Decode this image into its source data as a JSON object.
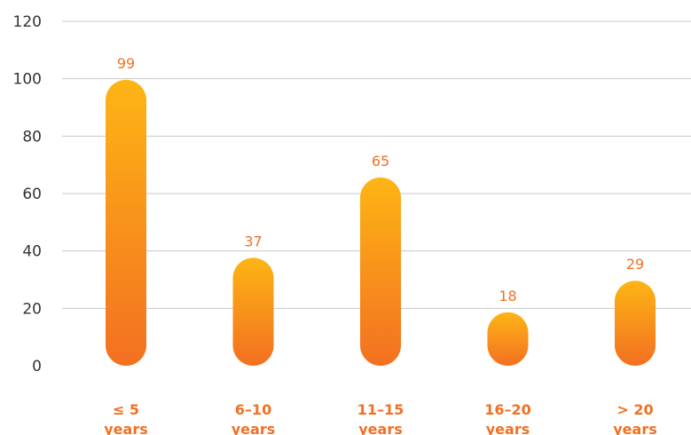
{
  "chart_data": {
    "type": "bar",
    "title": "",
    "xlabel": "",
    "ylabel": "",
    "categories": [
      [
        "≤ 5",
        "years"
      ],
      [
        "6–10",
        "years"
      ],
      [
        "11–15",
        "years"
      ],
      [
        "16–20",
        "years"
      ],
      [
        "> 20",
        "years"
      ]
    ],
    "values": [
      99,
      37,
      65,
      18,
      29
    ],
    "ylim": [
      0,
      120
    ],
    "yticks": [
      0,
      20,
      40,
      60,
      80,
      100,
      120
    ],
    "grid": true,
    "legend": "none",
    "colors": {
      "bar_top": "#fdb515",
      "bar_bottom": "#f37021",
      "label": "#f37021",
      "grid": "#c8c8c8",
      "tick": "#333333"
    }
  }
}
